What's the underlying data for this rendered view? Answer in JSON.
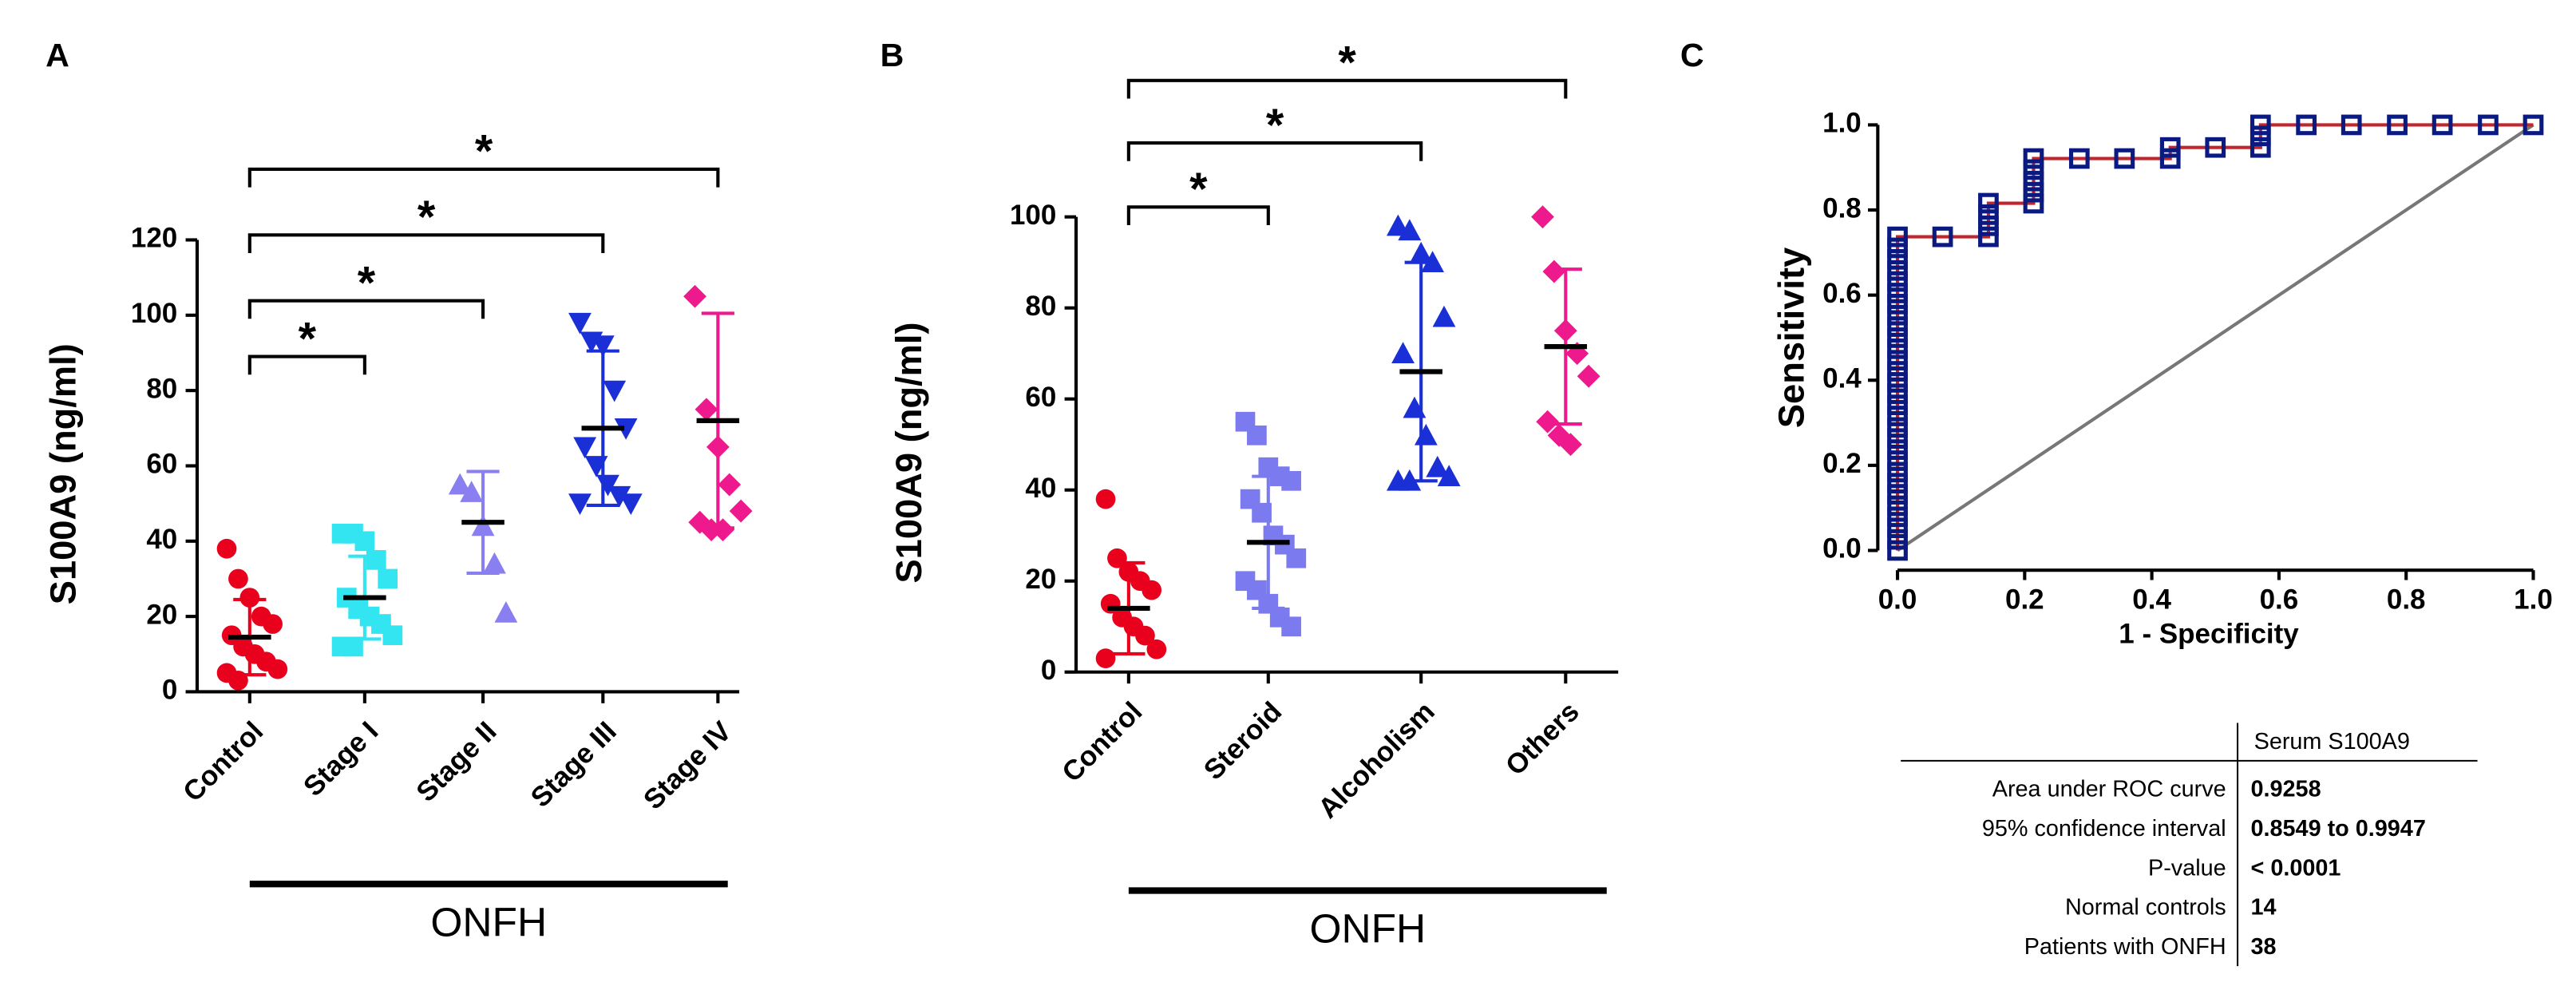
{
  "chart_data": [
    {
      "type": "strip",
      "panel": "A",
      "ylabel": "S100A9 (ng/ml)",
      "group_label": "ONFH",
      "ylim": [
        0,
        120
      ],
      "yticks": [
        0,
        20,
        40,
        60,
        80,
        100,
        120
      ],
      "groups": [
        {
          "name": "Control",
          "color": "#e8001c",
          "marker": "circle",
          "points": [
            38,
            30,
            25,
            20,
            18,
            15,
            12,
            10,
            8,
            6,
            5,
            3
          ],
          "mean": 14.5,
          "sd": 10
        },
        {
          "name": "Stage I",
          "color": "#33e5f0",
          "marker": "square",
          "points": [
            42,
            42,
            40,
            35,
            30,
            25,
            22,
            20,
            18,
            15,
            12,
            12
          ],
          "mean": 25,
          "sd": 11
        },
        {
          "name": "Stage II",
          "color": "#8a7ff0",
          "marker": "triangle",
          "points": [
            55,
            53,
            44,
            34,
            21
          ],
          "mean": 45,
          "sd": 13.5
        },
        {
          "name": "Stage III",
          "color": "#1a2fd6",
          "marker": "triangle-down",
          "points": [
            98,
            93,
            92,
            80,
            70,
            65,
            60,
            55,
            52,
            50,
            50
          ],
          "mean": 70,
          "sd": 20.5
        },
        {
          "name": "Stage IV",
          "color": "#ee1a8d",
          "marker": "diamond",
          "points": [
            105,
            75,
            65,
            55,
            48,
            45,
            43,
            43
          ],
          "mean": 72,
          "sd": 28.5
        }
      ],
      "brackets": [
        {
          "from": "Control",
          "to": "Stage I",
          "label": "*"
        },
        {
          "from": "Control",
          "to": "Stage II",
          "label": "*"
        },
        {
          "from": "Control",
          "to": "Stage III",
          "label": "*"
        },
        {
          "from": "Control",
          "to": "Stage IV",
          "label": "*"
        }
      ]
    },
    {
      "type": "strip",
      "panel": "B",
      "ylabel": "S100A9 (ng/ml)",
      "group_label": "ONFH",
      "ylim": [
        0,
        100
      ],
      "yticks": [
        0,
        20,
        40,
        60,
        80,
        100
      ],
      "groups": [
        {
          "name": "Control",
          "color": "#e8001c",
          "marker": "circle",
          "points": [
            38,
            25,
            22,
            20,
            18,
            15,
            12,
            10,
            8,
            5,
            3
          ],
          "mean": 14,
          "sd": 10
        },
        {
          "name": "Steroid",
          "color": "#7b7bef",
          "marker": "square",
          "points": [
            55,
            52,
            45,
            43,
            42,
            38,
            35,
            30,
            28,
            25,
            20,
            18,
            15,
            12,
            10
          ],
          "mean": 28.5,
          "sd": 14.5
        },
        {
          "name": "Alcoholism",
          "color": "#1a2fd6",
          "marker": "triangle",
          "points": [
            98,
            97,
            92,
            90,
            78,
            70,
            58,
            52,
            45,
            43,
            42,
            42
          ],
          "mean": 66,
          "sd": 24
        },
        {
          "name": "Others",
          "color": "#ee1a8d",
          "marker": "diamond",
          "points": [
            100,
            88,
            75,
            70,
            65,
            55,
            52,
            50
          ],
          "mean": 71.5,
          "sd": 17
        }
      ],
      "brackets": [
        {
          "from": "Control",
          "to": "Steroid",
          "label": "*"
        },
        {
          "from": "Control",
          "to": "Alcoholism",
          "label": "*"
        },
        {
          "from": "Control",
          "to": "Others",
          "label": "*"
        }
      ]
    },
    {
      "type": "roc",
      "panel": "C",
      "xlabel": "1 - Specificity",
      "ylabel": "Sensitivity",
      "xlim": [
        0,
        1
      ],
      "ylim": [
        0,
        1
      ],
      "xticks": [
        {
          "value": 0,
          "label": "0.0"
        },
        {
          "value": 0.2,
          "label": "0.2"
        },
        {
          "value": 0.4,
          "label": "0.4"
        },
        {
          "value": 0.6,
          "label": "0.6"
        },
        {
          "value": 0.8,
          "label": "0.8"
        },
        {
          "value": 1,
          "label": "1.0"
        }
      ],
      "yticks": [
        {
          "value": 0,
          "label": "0.0"
        },
        {
          "value": 0.2,
          "label": "0.2"
        },
        {
          "value": 0.4,
          "label": "0.4"
        },
        {
          "value": 0.6,
          "label": "0.6"
        },
        {
          "value": 0.8,
          "label": "0.8"
        },
        {
          "value": 1,
          "label": "1.0"
        }
      ],
      "line_color": "#c0262d",
      "marker_color": "#0b1a80",
      "x": [
        0,
        0,
        0,
        0,
        0,
        0,
        0,
        0,
        0,
        0,
        0,
        0,
        0,
        0,
        0,
        0,
        0,
        0,
        0,
        0,
        0,
        0,
        0,
        0,
        0,
        0,
        0,
        0,
        0,
        0.071,
        0.143,
        0.143,
        0.143,
        0.143,
        0.214,
        0.214,
        0.214,
        0.214,
        0.214,
        0.286,
        0.357,
        0.429,
        0.429,
        0.5,
        0.571,
        0.571,
        0.571,
        0.643,
        0.714,
        0.786,
        0.857,
        0.929,
        1
      ],
      "y": [
        0,
        0.026,
        0.053,
        0.079,
        0.105,
        0.132,
        0.158,
        0.184,
        0.211,
        0.237,
        0.263,
        0.289,
        0.316,
        0.342,
        0.368,
        0.395,
        0.421,
        0.447,
        0.474,
        0.5,
        0.526,
        0.553,
        0.579,
        0.605,
        0.632,
        0.658,
        0.684,
        0.711,
        0.737,
        0.737,
        0.737,
        0.763,
        0.789,
        0.816,
        0.816,
        0.842,
        0.868,
        0.895,
        0.921,
        0.921,
        0.921,
        0.921,
        0.947,
        0.947,
        0.947,
        0.974,
        1,
        1,
        1,
        1,
        1,
        1,
        1
      ],
      "table": {
        "column": "Serum S100A9",
        "rows": [
          [
            "Area under ROC curve",
            "0.9258"
          ],
          [
            "95% confidence interval",
            "0.8549 to 0.9947"
          ],
          [
            "P-value",
            "< 0.0001"
          ],
          [
            "Normal controls",
            "14"
          ],
          [
            "Patients with ONFH",
            "38"
          ]
        ]
      }
    }
  ]
}
